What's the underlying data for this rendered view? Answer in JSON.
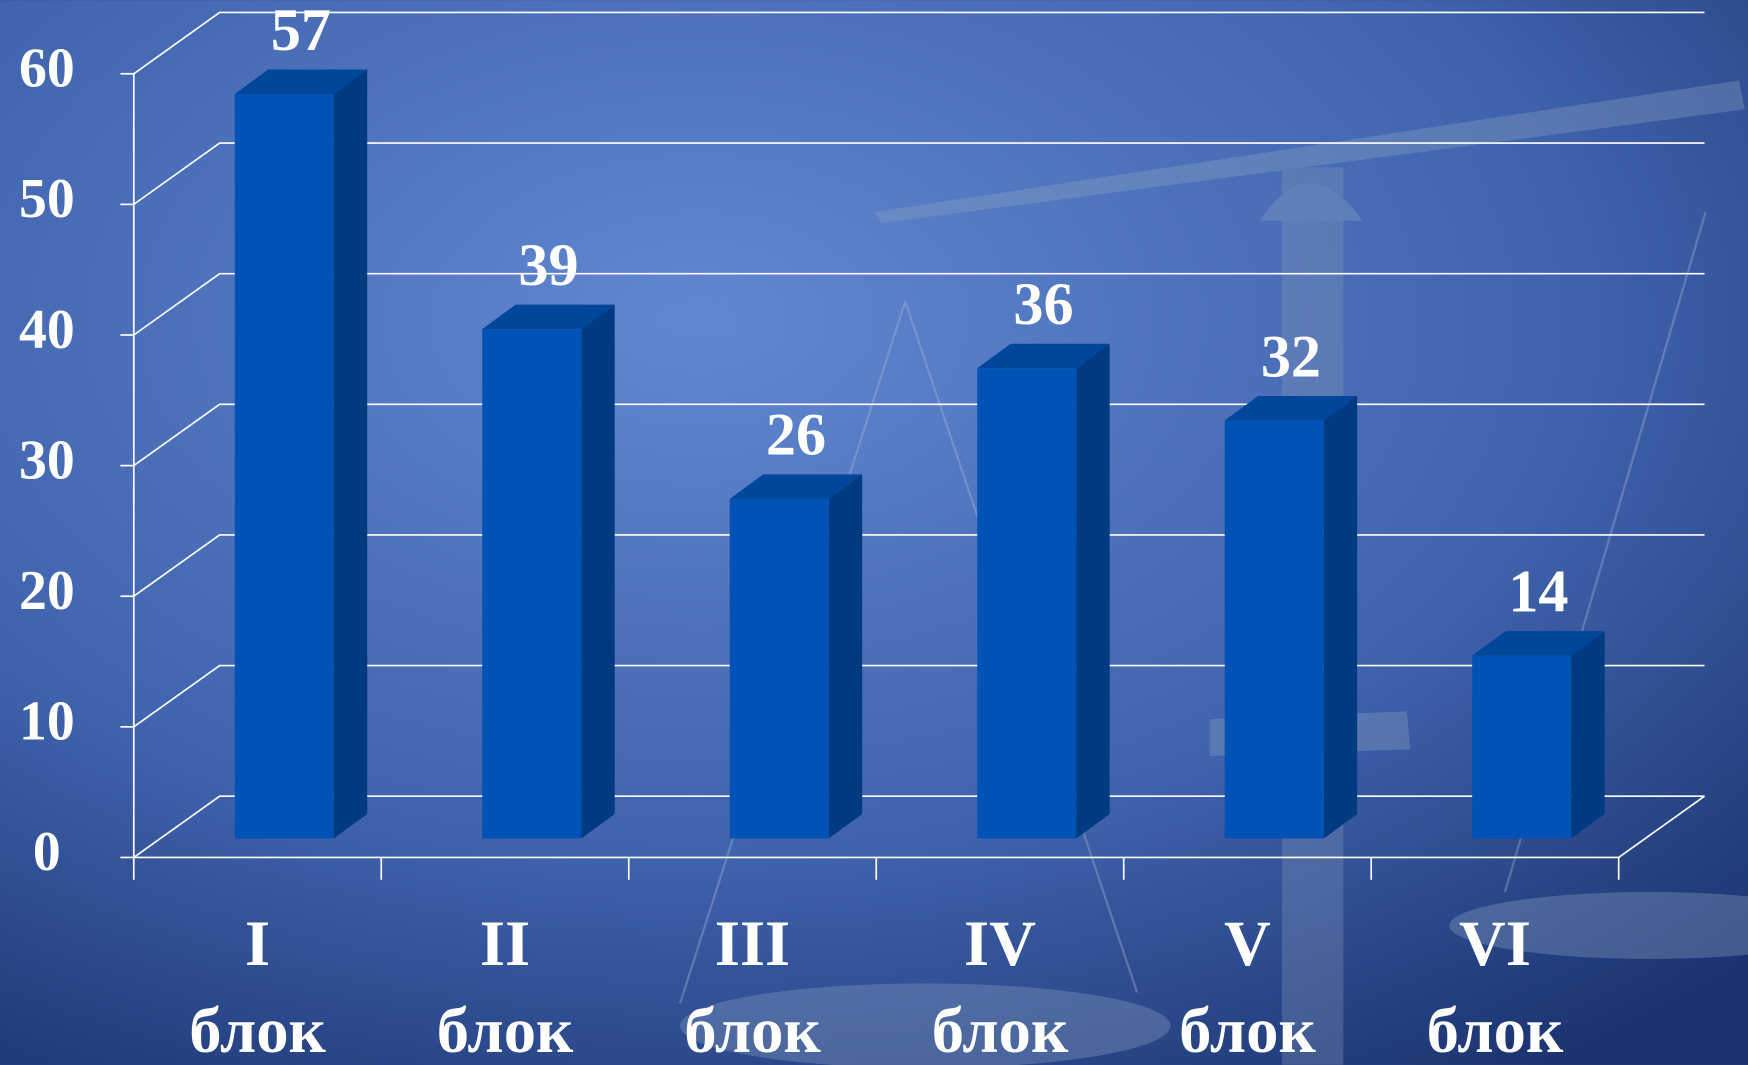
{
  "chart_data": {
    "type": "bar3d",
    "categories": [
      [
        "I",
        "блок"
      ],
      [
        "II",
        "блок"
      ],
      [
        "III",
        "блок"
      ],
      [
        "IV",
        "блок"
      ],
      [
        "V",
        "блок"
      ],
      [
        "VI",
        "блок"
      ]
    ],
    "values": [
      57,
      39,
      26,
      36,
      32,
      14
    ],
    "color": "#0052b4",
    "ylim": [
      0,
      60
    ],
    "yticks": [
      0,
      10,
      20,
      30,
      40,
      50,
      60
    ],
    "grid": true
  }
}
